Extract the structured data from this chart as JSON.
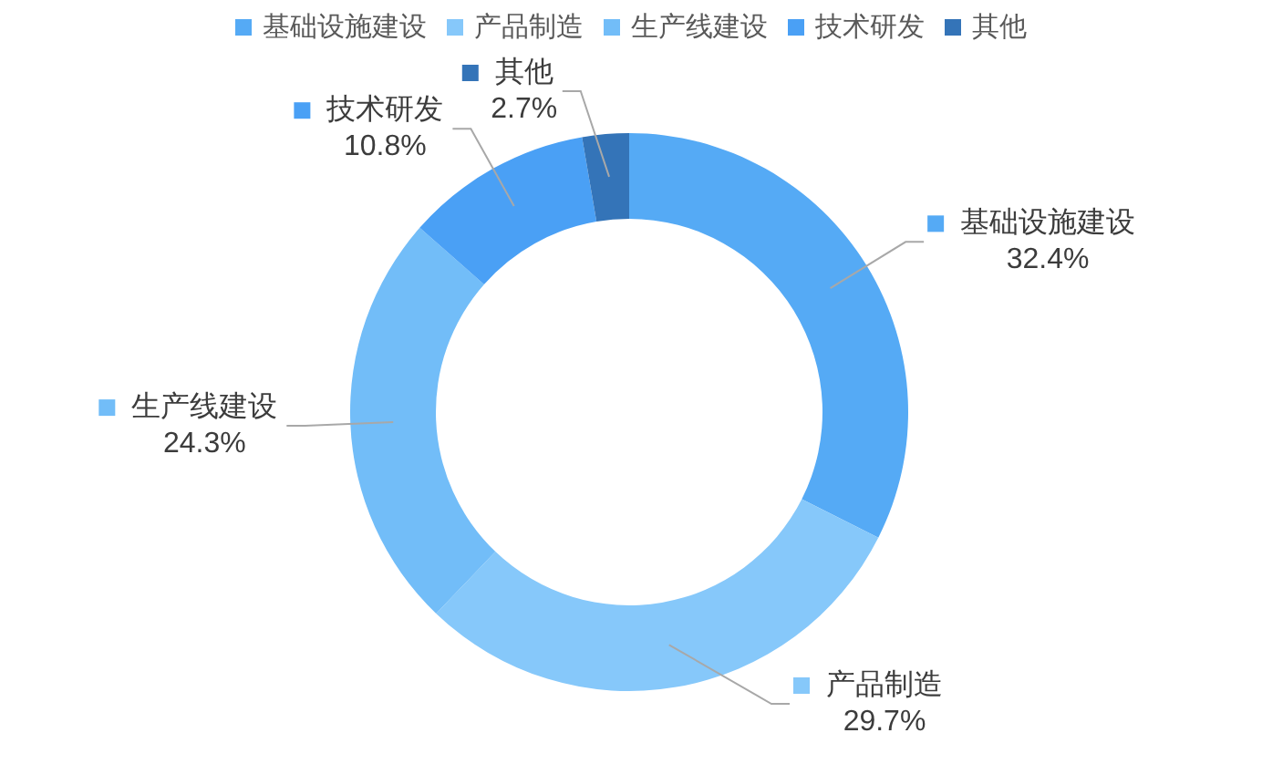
{
  "chart_data": {
    "type": "donut",
    "categories": [
      "基础设施建设",
      "产品制造",
      "生产线建设",
      "技术研发",
      "其他"
    ],
    "values": [
      32.4,
      29.7,
      24.3,
      10.8,
      2.7
    ],
    "colors": [
      "#55aaf5",
      "#86c8fa",
      "#72bdf8",
      "#4aa0f5",
      "#3474b8"
    ],
    "value_labels": [
      "32.4%",
      "29.7%",
      "24.3%",
      "10.8%",
      "2.7%"
    ],
    "legend": "top"
  }
}
